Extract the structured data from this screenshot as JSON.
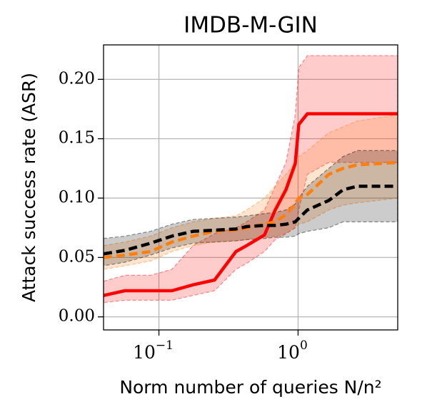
{
  "chart_data": {
    "type": "line",
    "title": "IMDB-M-GIN",
    "xlabel": "Norm number of queries N/n²",
    "ylabel": "Attack success rate (ASR)",
    "xscale": "log",
    "grid": true,
    "xlim": [
      0.04,
      5.2
    ],
    "ylim": [
      -0.011,
      0.229
    ],
    "xticks": [
      {
        "value": 0.1,
        "label": "10",
        "power": "−1"
      },
      {
        "value": 1,
        "label": "10",
        "power": "0"
      }
    ],
    "yticks": [
      {
        "value": 0,
        "label": "0.00"
      },
      0.05,
      {
        "value": 0.1,
        "label": "0.10"
      },
      0.15,
      {
        "value": 0.2,
        "label": "0.20"
      }
    ],
    "x": [
      0.04,
      0.057,
      0.087,
      0.124,
      0.176,
      0.251,
      0.358,
      0.427,
      0.574,
      0.685,
      0.818,
      0.954,
      1.012,
      1.166,
      1.662,
      2.104,
      2.665,
      5.2
    ],
    "series": [
      {
        "color": "#ff0000",
        "dash": "solid",
        "values": [
          0.018,
          0.022,
          0.022,
          0.022,
          0.027,
          0.031,
          0.055,
          0.06,
          0.069,
          0.09,
          0.107,
          0.129,
          0.162,
          0.171,
          0.171,
          0.171,
          0.171,
          0.171
        ],
        "lower": [
          0.012,
          0.014,
          0.014,
          0.014,
          0.018,
          0.022,
          0.04,
          0.045,
          0.055,
          0.065,
          0.07,
          0.075,
          0.09,
          0.12,
          0.13,
          0.13,
          0.13,
          0.13
        ],
        "upper": [
          0.03,
          0.035,
          0.035,
          0.04,
          0.06,
          0.07,
          0.075,
          0.08,
          0.09,
          0.11,
          0.13,
          0.17,
          0.21,
          0.22,
          0.22,
          0.22,
          0.22,
          0.22
        ]
      },
      {
        "color": "#ff7f0e",
        "dash": "dashed",
        "values": [
          0.05,
          0.052,
          0.055,
          0.063,
          0.068,
          0.072,
          0.073,
          0.075,
          0.078,
          0.08,
          0.086,
          0.095,
          0.1,
          0.103,
          0.12,
          0.125,
          0.128,
          0.13
        ],
        "lower": [
          0.04,
          0.043,
          0.047,
          0.055,
          0.06,
          0.063,
          0.064,
          0.065,
          0.067,
          0.068,
          0.07,
          0.075,
          0.078,
          0.08,
          0.09,
          0.094,
          0.096,
          0.1
        ],
        "upper": [
          0.06,
          0.063,
          0.068,
          0.075,
          0.08,
          0.083,
          0.085,
          0.09,
          0.1,
          0.11,
          0.12,
          0.13,
          0.135,
          0.14,
          0.155,
          0.16,
          0.165,
          0.17
        ]
      },
      {
        "color": "#000000",
        "dash": "dashed",
        "values": [
          0.053,
          0.056,
          0.062,
          0.068,
          0.072,
          0.073,
          0.074,
          0.076,
          0.077,
          0.077,
          0.078,
          0.08,
          0.083,
          0.09,
          0.098,
          0.107,
          0.11,
          0.11
        ],
        "lower": [
          0.043,
          0.046,
          0.052,
          0.058,
          0.062,
          0.063,
          0.064,
          0.065,
          0.066,
          0.067,
          0.067,
          0.068,
          0.07,
          0.072,
          0.075,
          0.08,
          0.08,
          0.08
        ],
        "upper": [
          0.066,
          0.068,
          0.072,
          0.078,
          0.082,
          0.083,
          0.084,
          0.085,
          0.087,
          0.088,
          0.09,
          0.095,
          0.1,
          0.11,
          0.125,
          0.135,
          0.14,
          0.14
        ]
      }
    ]
  }
}
